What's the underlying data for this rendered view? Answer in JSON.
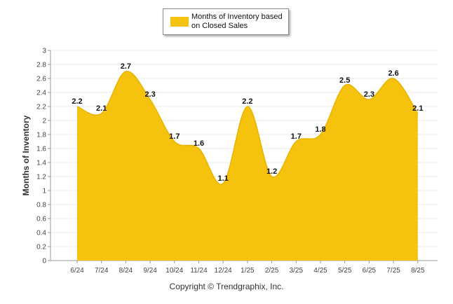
{
  "chart_data": {
    "type": "area",
    "categories": [
      "6/24",
      "7/24",
      "8/24",
      "9/24",
      "10/24",
      "11/24",
      "12/24",
      "1/25",
      "2/25",
      "3/25",
      "4/25",
      "5/25",
      "6/25",
      "7/25",
      "8/25"
    ],
    "series": [
      {
        "name": "Months of Inventory based on Closed Sales",
        "values": [
          2.2,
          2.1,
          2.7,
          2.3,
          1.7,
          1.6,
          1.1,
          2.2,
          1.2,
          1.7,
          1.8,
          2.5,
          2.3,
          2.6,
          2.1
        ]
      }
    ],
    "ylabel": "Months of Inventory",
    "ylim": [
      0,
      3
    ],
    "yticks": [
      "0",
      "0.2",
      "0.4",
      "0.6",
      "0.8",
      "1",
      "1.2",
      "1.4",
      "1.6",
      "1.8",
      "2",
      "2.2",
      "2.4",
      "2.6",
      "2.8",
      "3"
    ],
    "grid": true,
    "legend_position": "top-center"
  },
  "colors": {
    "area_fill": "#f5c20e",
    "area_edge": "#e8b400",
    "grid": "#e8e8e8",
    "axis": "#9a9a9a"
  },
  "footer": {
    "copyright": "Copyright © Trendgraphix, Inc."
  }
}
